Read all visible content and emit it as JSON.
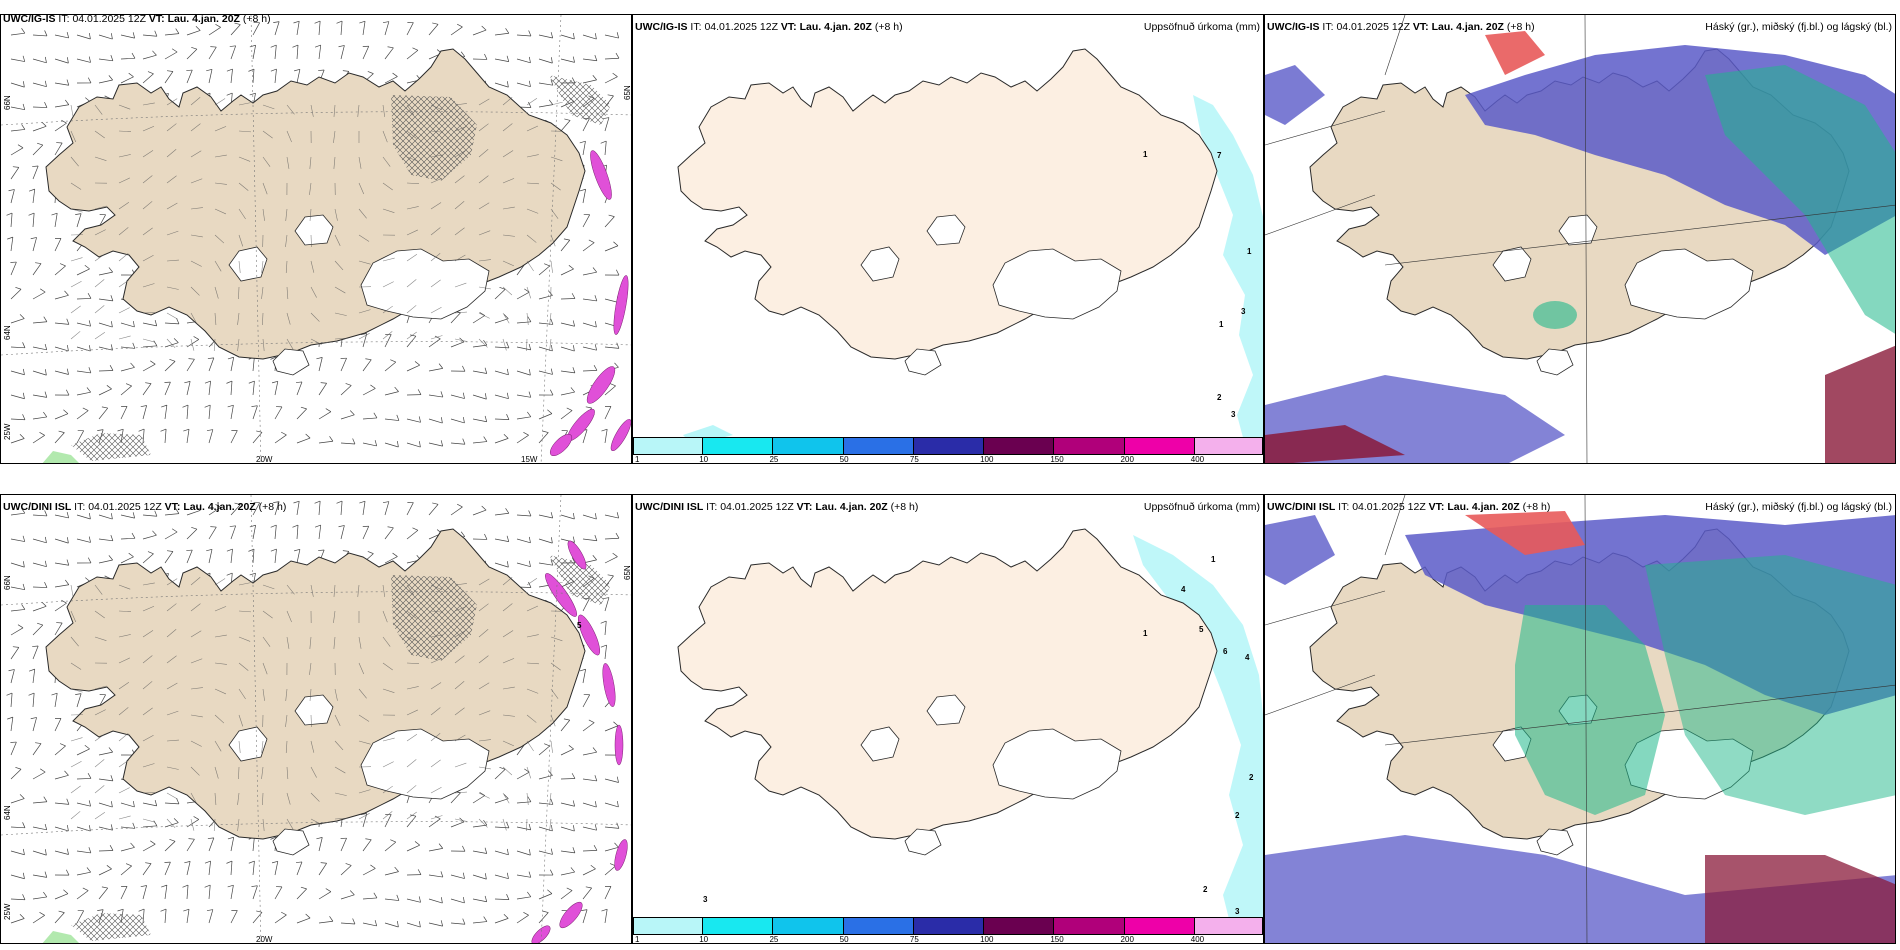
{
  "panels": [
    {
      "id": "wind-top",
      "model": "UWC/IG-IS",
      "it_label": "IT:",
      "it": "04.01.2025 12Z",
      "vt_label": "VT:",
      "vt": "Lau. 4.jan. 20Z",
      "lead": "(+8 h)",
      "right_title": "",
      "lon_labels": [
        "20W",
        "15W"
      ],
      "lat_labels": [
        "66N",
        "64N",
        "25W",
        "65N"
      ]
    },
    {
      "id": "precip-top",
      "model": "UWC/IG-IS",
      "it_label": "IT:",
      "it": "04.01.2025 12Z",
      "vt_label": "VT:",
      "vt": "Lau. 4.jan. 20Z",
      "lead": "(+8 h)",
      "right_title": "Uppsöfnuð úrkoma (mm)",
      "annotations": [
        "1",
        "7",
        "1",
        "1",
        "3",
        "2",
        "3"
      ]
    },
    {
      "id": "cloud-top",
      "model": "UWC/IG-IS",
      "it_label": "IT:",
      "it": "04.01.2025 12Z",
      "vt_label": "VT:",
      "vt": "Lau. 4.jan. 20Z",
      "lead": "(+8 h)",
      "right_title": "Háský (gr.), miðský (fj.bl.) og lágský (bl.)"
    },
    {
      "id": "wind-bottom",
      "model": "UWC/DINI ISL",
      "it_label": "IT:",
      "it": "04.01.2025 12Z",
      "vt_label": "VT:",
      "vt": "Lau. 4.jan. 20Z",
      "lead": "(+8 h)",
      "right_title": "",
      "lon_labels": [
        "20W"
      ],
      "lat_labels": [
        "66N",
        "64N",
        "25W",
        "65N"
      ],
      "annotations": [
        "5"
      ]
    },
    {
      "id": "precip-bottom",
      "model": "UWC/DINI ISL",
      "it_label": "IT:",
      "it": "04.01.2025 12Z",
      "vt_label": "VT:",
      "vt": "Lau. 4.jan. 20Z",
      "lead": "(+8 h)",
      "right_title": "Uppsöfnuð úrkoma (mm)",
      "annotations": [
        "1",
        "4",
        "1",
        "5",
        "6",
        "4",
        "2",
        "2",
        "2",
        "3",
        "3"
      ]
    },
    {
      "id": "cloud-bottom",
      "model": "UWC/DINI ISL",
      "it_label": "IT:",
      "it": "04.01.2025 12Z",
      "vt_label": "VT:",
      "vt": "Lau. 4.jan. 20Z",
      "lead": "(+8 h)",
      "right_title": "Háský (gr.), miðský (fj.bl.) og lágský (bl.)"
    }
  ],
  "colorbar": {
    "labels": [
      "1",
      "10",
      "25",
      "50",
      "75",
      "100",
      "150",
      "200",
      "400"
    ],
    "colors": [
      "#b8f6f8",
      "#18e8f0",
      "#10c4ec",
      "#2a70e6",
      "#2a2ca8",
      "#6a0050",
      "#b0007a",
      "#ee00a8",
      "#f4b0ec"
    ]
  },
  "colors": {
    "land": "#e8d9c2",
    "land_precip": "#fcefe2",
    "ocean": "#ffffff",
    "precip_light": "#b8f6f8",
    "cloud_high": "#e85a5a",
    "cloud_mid": "#5a5ac8",
    "cloud_low": "#1fb88a",
    "wind_magenta": "#e050d8"
  }
}
